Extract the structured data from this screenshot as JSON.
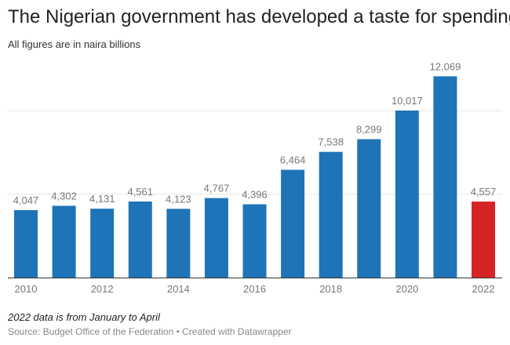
{
  "chart_data": {
    "type": "bar",
    "title": "The Nigerian government has developed a taste for spending",
    "subtitle": "All figures are in naira billions",
    "categories": [
      "2010",
      "2011",
      "2012",
      "2013",
      "2014",
      "2015",
      "2016",
      "2017",
      "2018",
      "2019",
      "2020",
      "2021",
      "2022"
    ],
    "values": [
      4047,
      4302,
      4131,
      4561,
      4123,
      4767,
      4396,
      6464,
      7538,
      8299,
      10017,
      12069,
      4557
    ],
    "value_labels": [
      "4,047",
      "4,302",
      "4,131",
      "4,561",
      "4,123",
      "4,767",
      "4,396",
      "6,464",
      "7,538",
      "8,299",
      "10,017",
      "12,069",
      "4,557"
    ],
    "x_tick_labels": [
      "2010",
      "",
      "2012",
      "",
      "2014",
      "",
      "2016",
      "",
      "2018",
      "",
      "2020",
      "",
      "2022"
    ],
    "ylim": [
      0,
      15000
    ],
    "gridlines": [
      5000,
      10000
    ],
    "grid": true,
    "colors": {
      "default": "#1f74b7",
      "highlight": "#d42426",
      "highlight_category": "2022"
    }
  },
  "footer": {
    "note": "2022 data is from January to April",
    "source": "Source: Budget Office of the Federation • Created with Datawrapper"
  }
}
